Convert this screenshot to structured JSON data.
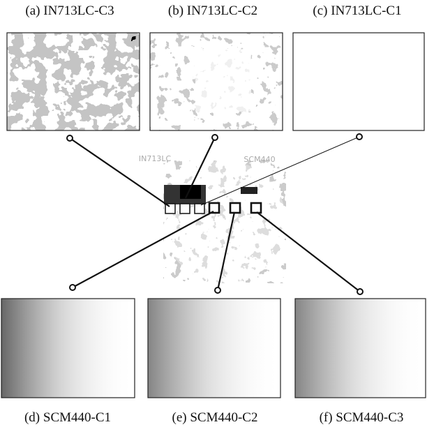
{
  "panels": [
    {
      "caption": "(a) IN713LC-C3"
    },
    {
      "caption": "(b) IN713LC-C2"
    },
    {
      "caption": "(c) IN713LC-C1"
    },
    {
      "caption": "(d) SCM440-C1"
    },
    {
      "caption": "(e) SCM440-C2"
    },
    {
      "caption": "(f) SCM440-C3"
    }
  ],
  "sample": {
    "labels": [
      "IN713LC",
      "SCM440"
    ]
  }
}
